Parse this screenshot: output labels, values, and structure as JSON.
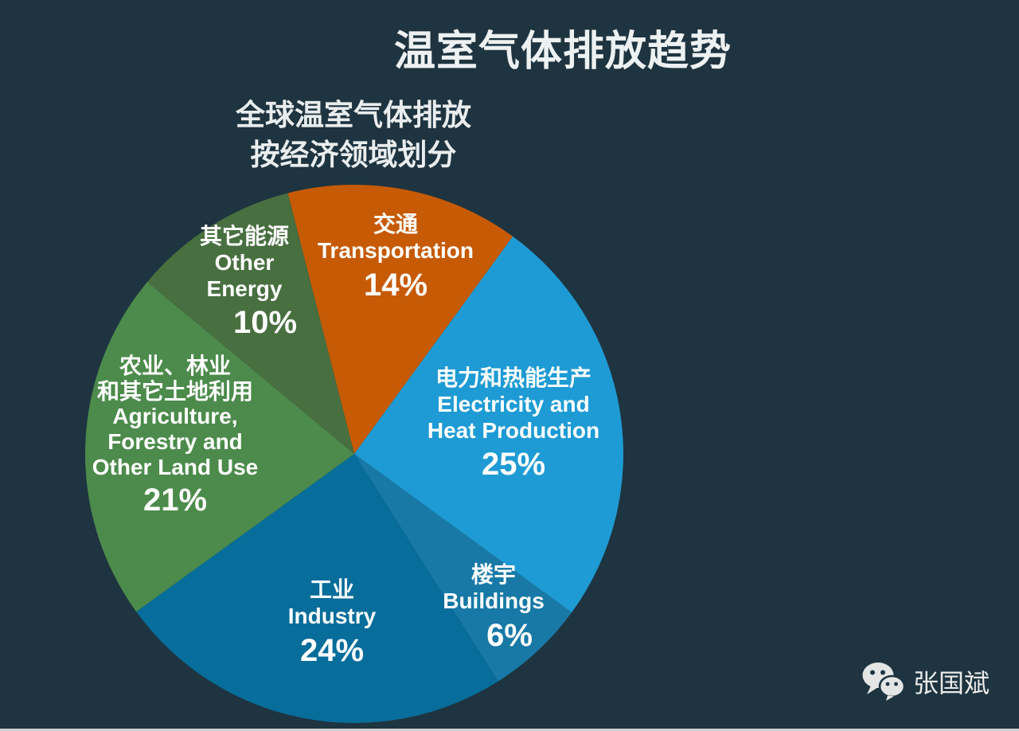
{
  "page": {
    "title": "温室气体排放趋势",
    "subtitle_line1": "全球温室气体排放",
    "subtitle_line2": "按经济领域划分",
    "background_color": "#1e3440",
    "label_text_color": "#ffffff",
    "title_text_color": "#edf1f2"
  },
  "watermark": {
    "icon": "wechat-logo-icon",
    "text": "张国斌"
  },
  "chart_data": {
    "type": "pie",
    "title": "温室气体排放趋势",
    "subtitle": "全球温室气体排放 按经济领域划分",
    "unit": "percent",
    "total": 100,
    "direction": "clockwise",
    "start_angle_deg": -14.3,
    "legend_position": "labels-on-slices",
    "slices": [
      {
        "id": "transportation",
        "label_zh": "交通",
        "label_en": "Transportation",
        "value": 14,
        "color": "#c65a05",
        "lines": [
          "交通",
          "Transportation",
          "14%"
        ]
      },
      {
        "id": "electricity-heat",
        "label_zh": "电力和热能生产",
        "label_en": "Electricity and Heat Production",
        "value": 25,
        "color": "#1e9bd4",
        "lines": [
          "电力和热能生产",
          "Electricity and",
          "Heat Production",
          "25%"
        ]
      },
      {
        "id": "buildings",
        "label_zh": "楼宇",
        "label_en": "Buildings",
        "value": 6,
        "color": "#1879a6",
        "lines": [
          "楼宇",
          "Buildings",
          "6%"
        ]
      },
      {
        "id": "industry",
        "label_zh": "工业",
        "label_en": "Industry",
        "value": 24,
        "color": "#076d9a",
        "lines": [
          "工业",
          "Industry",
          "24%"
        ]
      },
      {
        "id": "agriculture-forestry-land-use",
        "label_zh": "农业、林业和其它土地利用",
        "label_en": "Agriculture, Forestry and Other Land Use",
        "value": 21,
        "color": "#4c8b4b",
        "lines": [
          "农业、林业",
          "和其它土地利用",
          "Agriculture,",
          "Forestry and",
          "Other Land Use",
          "21%"
        ]
      },
      {
        "id": "other-energy",
        "label_zh": "其它能源",
        "label_en": "Other Energy",
        "value": 10,
        "color": "#486f40",
        "lines": [
          "其它能源",
          "Other",
          "Energy",
          "10%"
        ]
      }
    ]
  }
}
